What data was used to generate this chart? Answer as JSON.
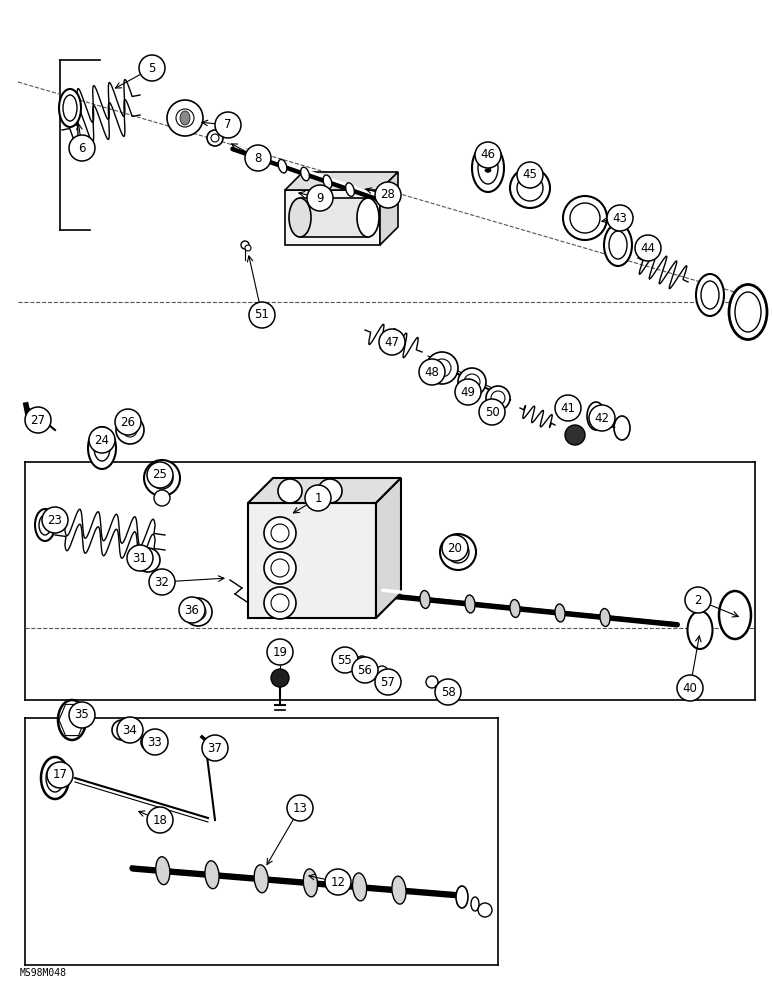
{
  "bg": "#ffffff",
  "watermark": "MS98M048",
  "lc": "#000000",
  "labels": [
    [
      "5",
      152,
      68
    ],
    [
      "6",
      82,
      148
    ],
    [
      "7",
      228,
      125
    ],
    [
      "8",
      258,
      158
    ],
    [
      "9",
      320,
      198
    ],
    [
      "28",
      388,
      195
    ],
    [
      "46",
      488,
      155
    ],
    [
      "45",
      530,
      175
    ],
    [
      "43",
      620,
      218
    ],
    [
      "44",
      648,
      248
    ],
    [
      "51",
      262,
      315
    ],
    [
      "47",
      392,
      342
    ],
    [
      "48",
      432,
      372
    ],
    [
      "49",
      468,
      392
    ],
    [
      "50",
      492,
      412
    ],
    [
      "41",
      568,
      408
    ],
    [
      "42",
      602,
      418
    ],
    [
      "27",
      38,
      420
    ],
    [
      "24",
      102,
      440
    ],
    [
      "26",
      128,
      422
    ],
    [
      "25",
      160,
      475
    ],
    [
      "1",
      318,
      498
    ],
    [
      "23",
      55,
      520
    ],
    [
      "31",
      140,
      558
    ],
    [
      "32",
      162,
      582
    ],
    [
      "20",
      455,
      548
    ],
    [
      "36",
      192,
      610
    ],
    [
      "2",
      698,
      600
    ],
    [
      "19",
      280,
      652
    ],
    [
      "55",
      345,
      660
    ],
    [
      "56",
      365,
      670
    ],
    [
      "57",
      388,
      682
    ],
    [
      "58",
      448,
      692
    ],
    [
      "40",
      690,
      688
    ],
    [
      "35",
      82,
      715
    ],
    [
      "34",
      130,
      730
    ],
    [
      "33",
      155,
      742
    ],
    [
      "37",
      215,
      748
    ],
    [
      "17",
      60,
      775
    ],
    [
      "18",
      160,
      820
    ],
    [
      "13",
      300,
      808
    ],
    [
      "12",
      338,
      882
    ]
  ]
}
